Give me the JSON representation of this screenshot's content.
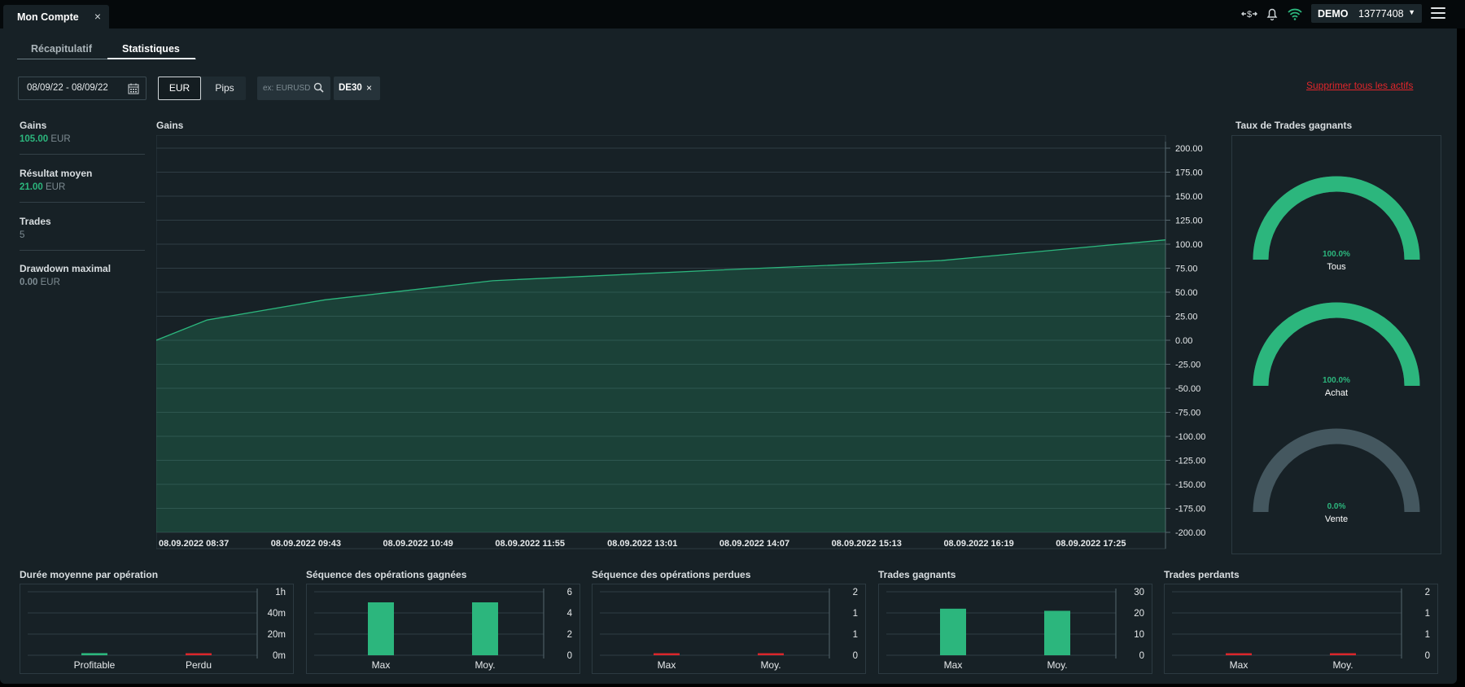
{
  "window": {
    "tab_title": "Mon Compte",
    "tab_close": "×"
  },
  "topbar": {
    "icons": [
      "exchange-icon",
      "bell-icon",
      "wifi-icon"
    ],
    "account_type": "DEMO",
    "account_number": "13777408",
    "account_caret": "▼"
  },
  "subtabs": [
    {
      "label": "Récapitulatif",
      "active": false
    },
    {
      "label": "Statistiques",
      "active": true
    }
  ],
  "filters": {
    "date_range": "08/09/22 - 08/09/22",
    "unit_options": [
      {
        "label": "EUR",
        "active": true
      },
      {
        "label": "Pips",
        "active": false
      }
    ],
    "search_placeholder": "ex: EURUSD",
    "chip_label": "DE30",
    "chip_close": "×",
    "delete_all": "Supprimer tous les actifs"
  },
  "kpis": [
    {
      "label": "Gains",
      "value": "105.00",
      "unit": "EUR",
      "color": "#2cb67d"
    },
    {
      "label": "Résultat moyen",
      "value": "21.00",
      "unit": "EUR",
      "color": "#2cb67d"
    },
    {
      "label": "Trades",
      "value": "5",
      "unit": "",
      "color": "#7d8b92"
    },
    {
      "label": "Drawdown maximal",
      "value": "0.00",
      "unit": "EUR",
      "color": "#7d8b92"
    }
  ],
  "colors": {
    "accent_green": "#2cb67d",
    "loss_red": "#d9262b",
    "gauge_grey": "#44575f",
    "link_red": "#e0262b"
  },
  "chart_data": [
    {
      "type": "area",
      "title": "Gains",
      "x": [
        "08.09.2022 08:37",
        "08.09.2022 09:43",
        "08.09.2022 10:49",
        "08.09.2022 11:55",
        "08.09.2022 13:01",
        "08.09.2022 14:07",
        "08.09.2022 15:13",
        "08.09.2022 16:19",
        "08.09.2022 17:25"
      ],
      "series": [
        {
          "points": [
            [
              0,
              0
            ],
            [
              0.45,
              21
            ],
            [
              1.5,
              42
            ],
            [
              3.0,
              62
            ],
            [
              5.0,
              73
            ],
            [
              7.0,
              83
            ],
            [
              9.0,
              104.5
            ]
          ]
        }
      ],
      "y_ticks": [
        "200.00",
        "175.00",
        "150.00",
        "125.00",
        "100.00",
        "75.00",
        "50.00",
        "25.00",
        "0.00",
        "-25.00",
        "-50.00",
        "-75.00",
        "-100.00",
        "-125.00",
        "-150.00",
        "-175.00",
        "-200.00"
      ],
      "ylim": [
        -200,
        200
      ],
      "grid": true
    },
    {
      "type": "gauge",
      "title": "Taux de Trades gagnants",
      "items": [
        {
          "name": "Tous",
          "value": 100.0,
          "label": "100.0%"
        },
        {
          "name": "Achat",
          "value": 100.0,
          "label": "100.0%"
        },
        {
          "name": "Vente",
          "value": 0.0,
          "label": "0.0%"
        }
      ]
    },
    {
      "type": "bar",
      "title": "Durée moyenne par opération",
      "categories": [
        "Profitable",
        "Perdu"
      ],
      "values": [
        2,
        1
      ],
      "colors": [
        "#2cb67d",
        "#d9262b"
      ],
      "y_ticks": [
        "1h",
        "40m",
        "20m",
        "0m"
      ],
      "ylim": [
        0,
        60
      ]
    },
    {
      "type": "bar",
      "title": "Séquence des opérations gagnées",
      "categories": [
        "Max",
        "Moy."
      ],
      "values": [
        5,
        5
      ],
      "colors": [
        "#2cb67d",
        "#2cb67d"
      ],
      "y_ticks": [
        "6",
        "4",
        "2",
        "0"
      ],
      "ylim": [
        0,
        6
      ]
    },
    {
      "type": "bar",
      "title": "Séquence des opérations perdues",
      "categories": [
        "Max",
        "Moy."
      ],
      "values": [
        0,
        0
      ],
      "colors": [
        "#d9262b",
        "#d9262b"
      ],
      "y_ticks": [
        "2",
        "1",
        "1",
        "0"
      ],
      "ylim": [
        0,
        2
      ]
    },
    {
      "type": "bar",
      "title": "Trades gagnants",
      "categories": [
        "Max",
        "Moy."
      ],
      "values": [
        22,
        21
      ],
      "colors": [
        "#2cb67d",
        "#2cb67d"
      ],
      "y_ticks": [
        "30",
        "20",
        "10",
        "0"
      ],
      "ylim": [
        0,
        30
      ]
    },
    {
      "type": "bar",
      "title": "Trades perdants",
      "categories": [
        "Max",
        "Moy."
      ],
      "values": [
        0,
        0
      ],
      "colors": [
        "#d9262b",
        "#d9262b"
      ],
      "y_ticks": [
        "2",
        "1",
        "1",
        "0"
      ],
      "ylim": [
        0,
        2
      ]
    }
  ]
}
